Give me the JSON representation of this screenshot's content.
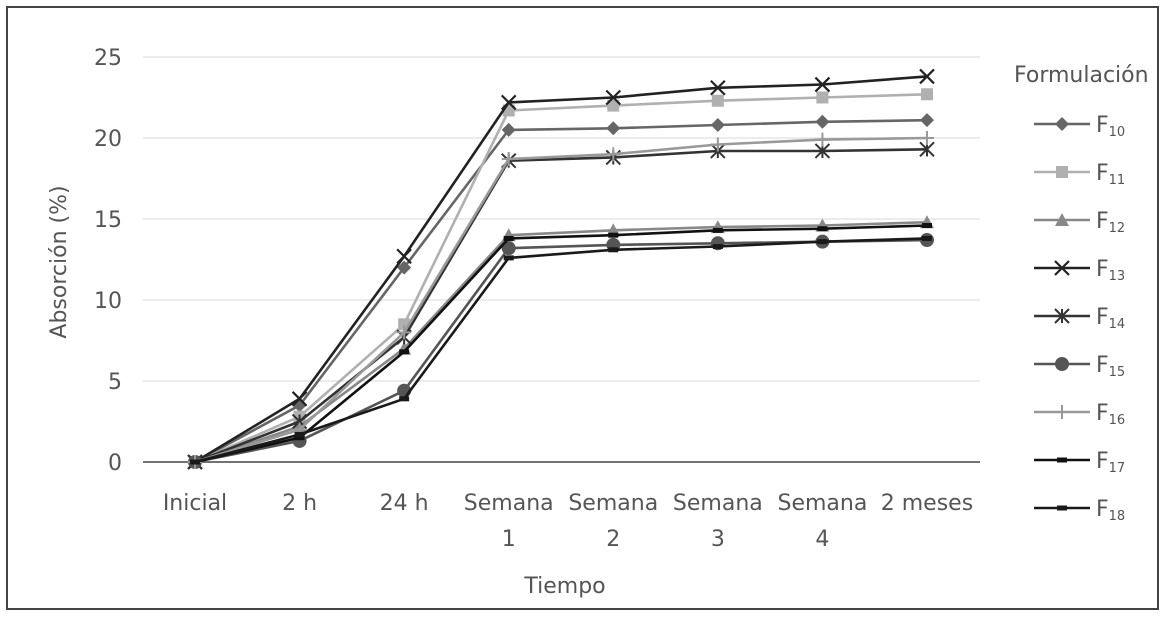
{
  "chart_data": {
    "type": "line",
    "xlabel": "Tiempo",
    "ylabel": "Absorción (%)",
    "ylim": [
      0,
      25
    ],
    "yticks": [
      0,
      5,
      10,
      15,
      20,
      25
    ],
    "grid": "horizontal",
    "legend": {
      "title": "Formulación",
      "placement": "right"
    },
    "categories": [
      [
        "Inicial"
      ],
      [
        "2 h"
      ],
      [
        "24 h"
      ],
      [
        "Semana",
        "1"
      ],
      [
        "Semana",
        "2"
      ],
      [
        "Semana",
        "3"
      ],
      [
        "Semana",
        "4"
      ],
      [
        "2 meses"
      ]
    ],
    "series": [
      {
        "name": "F10",
        "name_main": "F",
        "name_sub": "10",
        "marker": "diamond",
        "color": "#666666",
        "values": [
          0,
          3.5,
          12.0,
          20.5,
          20.6,
          20.8,
          21.0,
          21.1
        ]
      },
      {
        "name": "F11",
        "name_main": "F",
        "name_sub": "11",
        "marker": "square",
        "color": "#b0b0b0",
        "values": [
          0,
          2.8,
          8.5,
          21.7,
          22.0,
          22.3,
          22.5,
          22.7
        ]
      },
      {
        "name": "F12",
        "name_main": "F",
        "name_sub": "12",
        "marker": "triangle",
        "color": "#888888",
        "values": [
          0,
          2.2,
          7.0,
          14.0,
          14.3,
          14.5,
          14.6,
          14.8
        ]
      },
      {
        "name": "F13",
        "name_main": "F",
        "name_sub": "13",
        "marker": "x",
        "color": "#222222",
        "values": [
          0,
          3.9,
          12.7,
          22.2,
          22.5,
          23.1,
          23.3,
          23.8
        ]
      },
      {
        "name": "F14",
        "name_main": "F",
        "name_sub": "14",
        "marker": "asterisk",
        "color": "#333333",
        "values": [
          0,
          2.5,
          7.7,
          18.6,
          18.8,
          19.2,
          19.2,
          19.3
        ]
      },
      {
        "name": "F15",
        "name_main": "F",
        "name_sub": "15",
        "marker": "circle",
        "color": "#555555",
        "values": [
          0,
          1.3,
          4.4,
          13.2,
          13.4,
          13.5,
          13.6,
          13.7
        ]
      },
      {
        "name": "F16",
        "name_main": "F",
        "name_sub": "16",
        "marker": "plus",
        "color": "#999999",
        "values": [
          0,
          2.0,
          8.0,
          18.7,
          19.0,
          19.6,
          19.9,
          20.0
        ]
      },
      {
        "name": "F17",
        "name_main": "F",
        "name_sub": "17",
        "marker": "dash",
        "color": "#111111",
        "values": [
          0,
          1.5,
          6.8,
          13.8,
          14.0,
          14.3,
          14.4,
          14.6
        ]
      },
      {
        "name": "F18",
        "name_main": "F",
        "name_sub": "18",
        "marker": "dash",
        "color": "#1a1a1a",
        "values": [
          0,
          1.7,
          3.9,
          12.6,
          13.1,
          13.3,
          13.6,
          13.8
        ]
      }
    ]
  }
}
